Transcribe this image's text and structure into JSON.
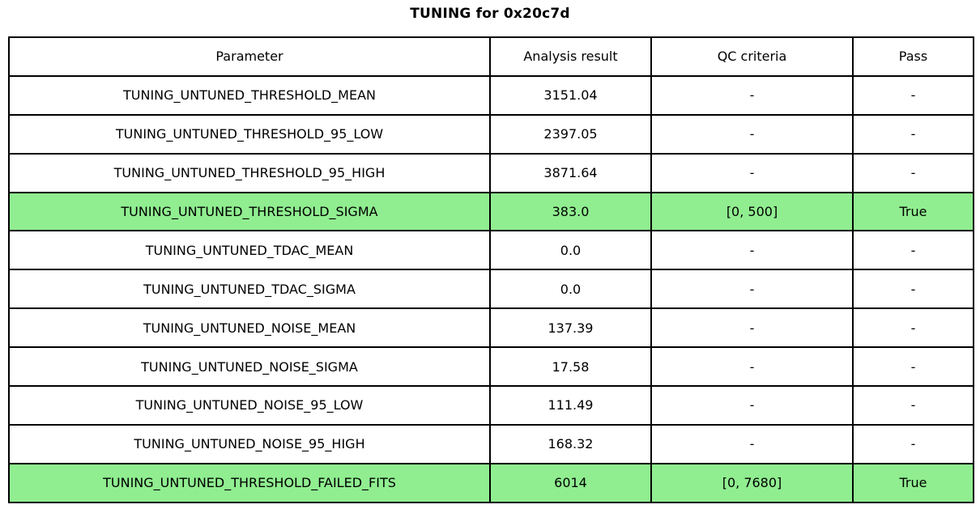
{
  "title": "TUNING for 0x20c7d",
  "colors": {
    "highlight": "#90ee90",
    "border": "#000000",
    "background": "#ffffff"
  },
  "table": {
    "headers": [
      "Parameter",
      "Analysis result",
      "QC criteria",
      "Pass"
    ],
    "rows": [
      {
        "parameter": "TUNING_UNTUNED_THRESHOLD_MEAN",
        "result": "3151.04",
        "qc": "-",
        "pass": "-",
        "highlight": false
      },
      {
        "parameter": "TUNING_UNTUNED_THRESHOLD_95_LOW",
        "result": "2397.05",
        "qc": "-",
        "pass": "-",
        "highlight": false
      },
      {
        "parameter": "TUNING_UNTUNED_THRESHOLD_95_HIGH",
        "result": "3871.64",
        "qc": "-",
        "pass": "-",
        "highlight": false
      },
      {
        "parameter": "TUNING_UNTUNED_THRESHOLD_SIGMA",
        "result": "383.0",
        "qc": "[0, 500]",
        "pass": "True",
        "highlight": true
      },
      {
        "parameter": "TUNING_UNTUNED_TDAC_MEAN",
        "result": "0.0",
        "qc": "-",
        "pass": "-",
        "highlight": false
      },
      {
        "parameter": "TUNING_UNTUNED_TDAC_SIGMA",
        "result": "0.0",
        "qc": "-",
        "pass": "-",
        "highlight": false
      },
      {
        "parameter": "TUNING_UNTUNED_NOISE_MEAN",
        "result": "137.39",
        "qc": "-",
        "pass": "-",
        "highlight": false
      },
      {
        "parameter": "TUNING_UNTUNED_NOISE_SIGMA",
        "result": "17.58",
        "qc": "-",
        "pass": "-",
        "highlight": false
      },
      {
        "parameter": "TUNING_UNTUNED_NOISE_95_LOW",
        "result": "111.49",
        "qc": "-",
        "pass": "-",
        "highlight": false
      },
      {
        "parameter": "TUNING_UNTUNED_NOISE_95_HIGH",
        "result": "168.32",
        "qc": "-",
        "pass": "-",
        "highlight": false
      },
      {
        "parameter": "TUNING_UNTUNED_THRESHOLD_FAILED_FITS",
        "result": "6014",
        "qc": "[0, 7680]",
        "pass": "True",
        "highlight": true
      }
    ]
  },
  "chart_data": {
    "type": "table",
    "title": "TUNING for 0x20c7d",
    "columns": [
      "Parameter",
      "Analysis result",
      "QC criteria",
      "Pass"
    ],
    "rows": [
      [
        "TUNING_UNTUNED_THRESHOLD_MEAN",
        "3151.04",
        "-",
        "-"
      ],
      [
        "TUNING_UNTUNED_THRESHOLD_95_LOW",
        "2397.05",
        "-",
        "-"
      ],
      [
        "TUNING_UNTUNED_THRESHOLD_95_HIGH",
        "3871.64",
        "-",
        "-"
      ],
      [
        "TUNING_UNTUNED_THRESHOLD_SIGMA",
        "383.0",
        "[0, 500]",
        "True"
      ],
      [
        "TUNING_UNTUNED_TDAC_MEAN",
        "0.0",
        "-",
        "-"
      ],
      [
        "TUNING_UNTUNED_TDAC_SIGMA",
        "0.0",
        "-",
        "-"
      ],
      [
        "TUNING_UNTUNED_NOISE_MEAN",
        "137.39",
        "-",
        "-"
      ],
      [
        "TUNING_UNTUNED_NOISE_SIGMA",
        "17.58",
        "-",
        "-"
      ],
      [
        "TUNING_UNTUNED_NOISE_95_LOW",
        "111.49",
        "-",
        "-"
      ],
      [
        "TUNING_UNTUNED_NOISE_95_HIGH",
        "168.32",
        "-",
        "-"
      ],
      [
        "TUNING_UNTUNED_THRESHOLD_FAILED_FITS",
        "6014",
        "[0, 7680]",
        "True"
      ]
    ],
    "highlighted_row_indices": [
      3,
      10
    ],
    "highlight_meaning": "QC-checked parameter passed (Pass = True)",
    "layout_hints": {
      "title_position": "top-center",
      "cell_alignment": "center",
      "grid": "all-borders",
      "highlight_color": "#90ee90"
    }
  }
}
